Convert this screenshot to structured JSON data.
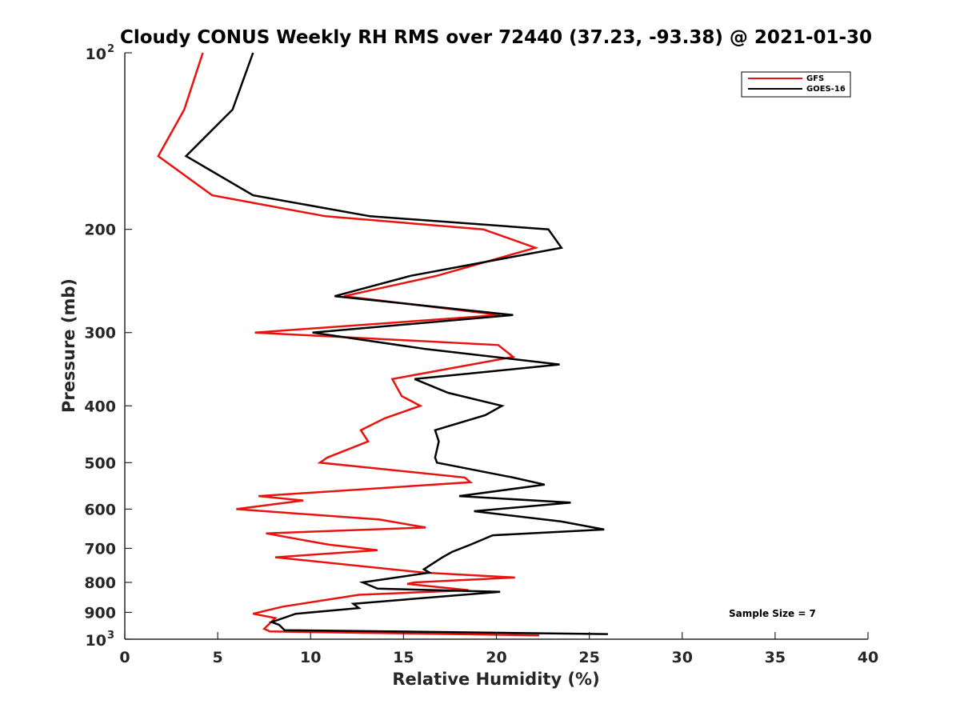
{
  "chart_data": {
    "type": "line",
    "title": "Cloudy CONUS Weekly RH RMS over 72440 (37.23, -93.38) @ 2021-01-30",
    "xlabel": "Relative Humidity (%)",
    "ylabel": "Pressure (mb)",
    "xlim": [
      0,
      40
    ],
    "ylim": [
      100,
      1000
    ],
    "y_scale": "log",
    "y_reversed": true,
    "x_ticks": [
      "0",
      "5",
      "10",
      "15",
      "20",
      "25",
      "30",
      "35",
      "40"
    ],
    "y_ticks": [
      {
        "value": 100,
        "base": "10",
        "exp": "2"
      },
      {
        "value": 200,
        "label": "200"
      },
      {
        "value": 300,
        "label": "300"
      },
      {
        "value": 400,
        "label": "400"
      },
      {
        "value": 500,
        "label": "500"
      },
      {
        "value": 600,
        "label": "600"
      },
      {
        "value": 700,
        "label": "700"
      },
      {
        "value": 800,
        "label": "800"
      },
      {
        "value": 900,
        "label": "900"
      },
      {
        "value": 1000,
        "base": "10",
        "exp": "3"
      }
    ],
    "legend_position": "top-right",
    "annotation": "Sample Size = 7",
    "series": [
      {
        "name": "GFS",
        "color": "#e8130e",
        "points": [
          [
            4.2,
            100
          ],
          [
            3.2,
            125
          ],
          [
            1.8,
            150
          ],
          [
            4.7,
            175
          ],
          [
            10.8,
            190
          ],
          [
            19.3,
            200
          ],
          [
            22.1,
            215
          ],
          [
            16.8,
            240
          ],
          [
            11.8,
            260
          ],
          [
            20.2,
            280
          ],
          [
            7.0,
            300
          ],
          [
            20.1,
            315
          ],
          [
            20.9,
            330
          ],
          [
            14.4,
            360
          ],
          [
            14.9,
            385
          ],
          [
            15.9,
            400
          ],
          [
            14.0,
            420
          ],
          [
            12.7,
            440
          ],
          [
            13.1,
            460
          ],
          [
            10.9,
            490
          ],
          [
            10.5,
            500
          ],
          [
            18.3,
            530
          ],
          [
            18.6,
            540
          ],
          [
            7.2,
            570
          ],
          [
            9.6,
            580
          ],
          [
            6.0,
            600
          ],
          [
            13.7,
            625
          ],
          [
            16.2,
            645
          ],
          [
            7.6,
            660
          ],
          [
            11.0,
            690
          ],
          [
            13.6,
            705
          ],
          [
            8.1,
            725
          ],
          [
            16.1,
            770
          ],
          [
            21.0,
            785
          ],
          [
            15.6,
            800
          ],
          [
            15.2,
            805
          ],
          [
            18.5,
            825
          ],
          [
            12.6,
            840
          ],
          [
            8.5,
            880
          ],
          [
            6.9,
            905
          ],
          [
            8.1,
            920
          ],
          [
            7.5,
            960
          ],
          [
            7.8,
            970
          ],
          [
            22.3,
            985
          ]
        ]
      },
      {
        "name": "GOES-16",
        "color": "#000000",
        "points": [
          [
            6.9,
            100
          ],
          [
            5.8,
            125
          ],
          [
            3.3,
            150
          ],
          [
            6.9,
            175
          ],
          [
            13.2,
            190
          ],
          [
            22.8,
            200
          ],
          [
            23.5,
            215
          ],
          [
            15.4,
            240
          ],
          [
            11.3,
            260
          ],
          [
            20.9,
            280
          ],
          [
            10.1,
            300
          ],
          [
            16.2,
            320
          ],
          [
            23.4,
            340
          ],
          [
            15.6,
            360
          ],
          [
            17.4,
            380
          ],
          [
            20.3,
            400
          ],
          [
            19.4,
            415
          ],
          [
            16.7,
            440
          ],
          [
            16.9,
            460
          ],
          [
            16.7,
            490
          ],
          [
            16.8,
            500
          ],
          [
            20.9,
            530
          ],
          [
            22.6,
            545
          ],
          [
            18.0,
            570
          ],
          [
            24.0,
            585
          ],
          [
            18.8,
            605
          ],
          [
            23.5,
            630
          ],
          [
            25.8,
            650
          ],
          [
            19.8,
            665
          ],
          [
            18.6,
            690
          ],
          [
            17.6,
            710
          ],
          [
            17.1,
            725
          ],
          [
            16.1,
            760
          ],
          [
            16.4,
            770
          ],
          [
            12.8,
            800
          ],
          [
            13.6,
            820
          ],
          [
            20.2,
            830
          ],
          [
            12.3,
            870
          ],
          [
            12.6,
            885
          ],
          [
            9.2,
            905
          ],
          [
            7.9,
            935
          ],
          [
            8.3,
            945
          ],
          [
            8.6,
            965
          ],
          [
            26.0,
            980
          ]
        ]
      }
    ]
  }
}
